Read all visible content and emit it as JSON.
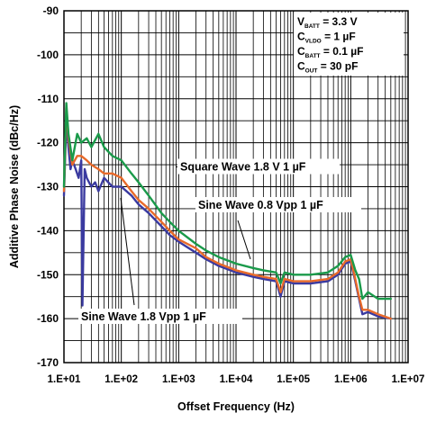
{
  "chart_data": {
    "type": "line",
    "xlabel": "Offset Frequency (Hz)",
    "ylabel": "Additive Phase Noise (dBc/Hz)",
    "xscale": "log",
    "xlim": [
      10,
      10000000
    ],
    "ylim": [
      -170,
      -90
    ],
    "grid": true,
    "x_ticks": [
      "1.E+01",
      "1.E+02",
      "1.E+03",
      "1.E+04",
      "1.E+05",
      "1.E+06",
      "1.E+07"
    ],
    "y_ticks": [
      "-90",
      "-100",
      "-110",
      "-120",
      "-130",
      "-140",
      "-150",
      "-160",
      "-170"
    ],
    "conditions": [
      {
        "main": "V",
        "sub": "BATT",
        "rest": " = 3.3 V"
      },
      {
        "main": "C",
        "sub": "VLDO",
        "rest": " = 1 µF"
      },
      {
        "main": "C",
        "sub": "BATT",
        "rest": " = 0.1 µF"
      },
      {
        "main": "C",
        "sub": "OUT",
        "rest": " = 30 pF"
      }
    ],
    "annotations": {
      "square": "Square Wave 1.8 V 1 µF",
      "sine08": "Sine Wave 0.8 Vpp 1 µF",
      "sine18": "Sine Wave 1.8 Vpp 1 µF"
    },
    "series": [
      {
        "name": "Square Wave 1.8 V 1 µF",
        "color": "#1a9a4a",
        "x": [
          10,
          11,
          12,
          14,
          17,
          20,
          25,
          30,
          40,
          50,
          70,
          100,
          150,
          200,
          300,
          500,
          700,
          1000,
          2000,
          3000,
          5000,
          10000,
          20000,
          30000,
          50000,
          60000,
          70000,
          100000,
          200000,
          400000,
          600000,
          800000,
          1000000,
          1200000,
          1400000,
          1600000,
          2000000,
          3000000,
          5000000
        ],
        "y": [
          -130,
          -111,
          -118,
          -124,
          -118,
          -120,
          -119,
          -121,
          -118,
          -121,
          -123,
          -124,
          -127,
          -129,
          -132,
          -136,
          -138,
          -140,
          -143,
          -144.5,
          -146,
          -147.5,
          -148.5,
          -149,
          -149.5,
          -152,
          -149.5,
          -150,
          -150,
          -149.5,
          -148,
          -146,
          -145.5,
          -149,
          -151,
          -155.5,
          -154,
          -155.5,
          -155.5
        ]
      },
      {
        "name": "Sine Wave 0.8 Vpp 1 µF",
        "color": "#e86a2a",
        "x": [
          10,
          11,
          12,
          14,
          17,
          20,
          25,
          30,
          40,
          50,
          70,
          100,
          150,
          200,
          300,
          500,
          700,
          1000,
          2000,
          3000,
          5000,
          10000,
          20000,
          30000,
          50000,
          60000,
          70000,
          100000,
          200000,
          400000,
          600000,
          800000,
          1000000,
          1200000,
          1400000,
          1600000,
          2000000,
          3000000,
          5000000
        ],
        "y": [
          -131,
          -112,
          -119,
          -125,
          -123,
          -123,
          -124,
          -125,
          -126,
          -127,
          -127,
          -128,
          -131,
          -133,
          -135,
          -138,
          -140,
          -142,
          -144,
          -146,
          -147.5,
          -149,
          -150,
          -150.5,
          -151,
          -154,
          -151,
          -151.5,
          -151.5,
          -151,
          -149.5,
          -147,
          -146.5,
          -151,
          -155,
          -158,
          -158,
          -159,
          -160
        ]
      },
      {
        "name": "Sine Wave 1.8 Vpp 1 µF",
        "color": "#3a3aa0",
        "x": [
          10,
          11,
          12,
          13,
          14,
          16,
          18,
          20,
          21,
          23,
          25,
          30,
          35,
          40,
          50,
          70,
          100,
          150,
          200,
          300,
          500,
          700,
          1000,
          2000,
          3000,
          5000,
          10000,
          20000,
          30000,
          50000,
          60000,
          70000,
          100000,
          200000,
          400000,
          600000,
          800000,
          1000000,
          1200000,
          1400000,
          1600000,
          2000000,
          3000000,
          5000000
        ],
        "y": [
          -132,
          -115,
          -121,
          -126,
          -124,
          -126,
          -128,
          -124,
          -157,
          -126,
          -128,
          -130,
          -129,
          -131,
          -128,
          -130,
          -130,
          -132,
          -134,
          -136,
          -139,
          -141,
          -142.5,
          -145,
          -146.5,
          -148,
          -149.5,
          -150.5,
          -151,
          -151.5,
          -155,
          -151.5,
          -152,
          -152,
          -151.5,
          -150,
          -147.5,
          -147,
          -151.5,
          -155.5,
          -159,
          -158.5,
          -159.5,
          -160
        ]
      }
    ]
  }
}
